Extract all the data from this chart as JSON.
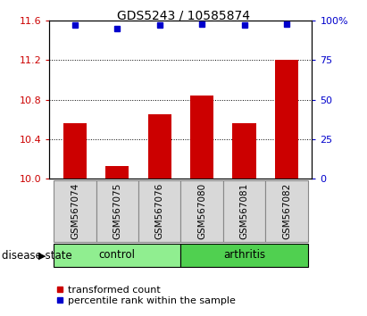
{
  "title": "GDS5243 / 10585874",
  "samples": [
    "GSM567074",
    "GSM567075",
    "GSM567076",
    "GSM567080",
    "GSM567081",
    "GSM567082"
  ],
  "red_values": [
    10.56,
    10.13,
    10.65,
    10.84,
    10.56,
    11.2
  ],
  "blue_values": [
    97,
    95,
    97,
    98,
    97,
    98
  ],
  "ymin": 10.0,
  "ymax": 11.6,
  "yticks_left": [
    10.0,
    10.4,
    10.8,
    11.2,
    11.6
  ],
  "yticks_right": [
    0,
    25,
    50,
    75,
    100
  ],
  "groups": [
    {
      "label": "control",
      "indices": [
        0,
        1,
        2
      ],
      "color": "#90ee90"
    },
    {
      "label": "arthritis",
      "indices": [
        3,
        4,
        5
      ],
      "color": "#50d050"
    }
  ],
  "bar_color": "#cc0000",
  "dot_color": "#0000cc",
  "bar_width": 0.55,
  "title_fontsize": 10,
  "tick_fontsize": 8,
  "sample_fontsize": 7.5,
  "label_fontsize": 8.5,
  "legend_fontsize": 8,
  "bg_color": "#d8d8d8",
  "disease_state_label": "disease state",
  "legend_red": "transformed count",
  "legend_blue": "percentile rank within the sample",
  "gridline_vals": [
    10.4,
    10.8,
    11.2
  ]
}
